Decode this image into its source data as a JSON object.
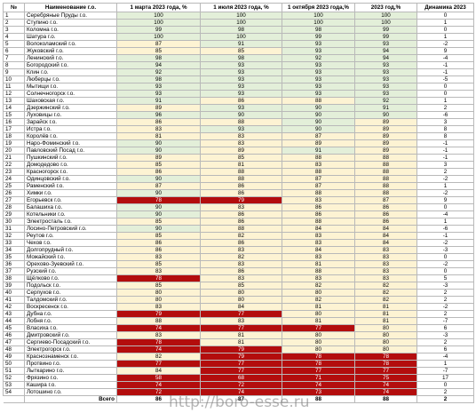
{
  "table": {
    "headers": [
      "№",
      "Наименование г.о.",
      "1 марта 2023 года, %",
      "1 июля 2023 года, %",
      "1 октября 2023 года,%",
      "2023 год,%",
      "Динамика 2023"
    ],
    "rows": [
      [
        1,
        "Серебряные Пруды г.о.",
        100,
        100,
        100,
        100,
        0
      ],
      [
        2,
        "Ступино г.о.",
        100,
        100,
        100,
        100,
        1
      ],
      [
        3,
        "Коломна г.о.",
        99,
        98,
        98,
        99,
        0
      ],
      [
        4,
        "Шатура г.о.",
        100,
        100,
        99,
        99,
        1
      ],
      [
        5,
        "Волоколамский г.о.",
        87,
        91,
        93,
        93,
        -2
      ],
      [
        6,
        "Жуковский г.о.",
        85,
        85,
        93,
        94,
        9
      ],
      [
        7,
        "Ленинский г.о.",
        98,
        98,
        92,
        94,
        -4
      ],
      [
        8,
        "Богородский г.о.",
        94,
        93,
        93,
        93,
        -1
      ],
      [
        9,
        "Клин г.о.",
        92,
        93,
        93,
        93,
        -1
      ],
      [
        10,
        "Люберцы г.о.",
        98,
        93,
        93,
        93,
        -5
      ],
      [
        11,
        "Мытищи г.о.",
        93,
        93,
        93,
        93,
        0
      ],
      [
        12,
        "Солнечногорск г.о.",
        93,
        93,
        93,
        93,
        0
      ],
      [
        13,
        "Шаховская г.о.",
        91,
        86,
        88,
        92,
        1
      ],
      [
        14,
        "Дзержинский г.о.",
        89,
        93,
        90,
        91,
        2
      ],
      [
        15,
        "Луховицы г.о.",
        96,
        90,
        90,
        90,
        -6
      ],
      [
        16,
        "Зарайск г.о.",
        86,
        88,
        90,
        89,
        3
      ],
      [
        17,
        "Истра г.о.",
        83,
        93,
        90,
        89,
        8
      ],
      [
        18,
        "Королёв г.о.",
        81,
        83,
        87,
        89,
        8
      ],
      [
        19,
        "Наро-Фоминский г.о.",
        90,
        83,
        89,
        89,
        -1
      ],
      [
        20,
        "Павловский Посад г.о.",
        90,
        89,
        91,
        89,
        -1
      ],
      [
        21,
        "Пушкинский г.о.",
        89,
        85,
        88,
        88,
        -1
      ],
      [
        22,
        "Домодедово г.о.",
        85,
        81,
        83,
        88,
        3
      ],
      [
        23,
        "Красногорск г.о.",
        86,
        88,
        88,
        88,
        2
      ],
      [
        24,
        "Одинцовский г.о.",
        90,
        88,
        87,
        88,
        -2
      ],
      [
        25,
        "Раменский г.о.",
        87,
        86,
        87,
        88,
        1
      ],
      [
        26,
        "Химки г.о.",
        90,
        86,
        88,
        88,
        -2
      ],
      [
        27,
        "Егорьевск г.о.",
        78,
        79,
        83,
        87,
        9
      ],
      [
        28,
        "Балашиха г.о.",
        90,
        83,
        86,
        86,
        0
      ],
      [
        29,
        "Котельники г.о.",
        90,
        86,
        86,
        86,
        -4
      ],
      [
        30,
        "Электросталь г.о.",
        85,
        86,
        88,
        86,
        1
      ],
      [
        31,
        "Лосино-Петровский г.о.",
        90,
        88,
        84,
        84,
        -6
      ],
      [
        32,
        "Реутов г.о.",
        85,
        82,
        83,
        84,
        -1
      ],
      [
        33,
        "Чехов г.о.",
        86,
        86,
        83,
        84,
        -2
      ],
      [
        34,
        "Долгопрудный г.о.",
        86,
        83,
        84,
        83,
        -3
      ],
      [
        35,
        "Можайский г.о.",
        83,
        82,
        83,
        83,
        0
      ],
      [
        36,
        "Орехово-Зуевский г.о.",
        85,
        83,
        81,
        83,
        -2
      ],
      [
        37,
        "Рузский г.о.",
        83,
        86,
        88,
        83,
        0
      ],
      [
        38,
        "Щёлково г.о.",
        78,
        83,
        83,
        83,
        5
      ],
      [
        39,
        "Подольск г.о.",
        85,
        85,
        82,
        82,
        -3
      ],
      [
        40,
        "Серпухов г.о.",
        80,
        80,
        80,
        82,
        2
      ],
      [
        41,
        "Талдомский г.о.",
        80,
        80,
        82,
        82,
        2
      ],
      [
        42,
        "Воскресенск г.о.",
        83,
        84,
        81,
        81,
        -2
      ],
      [
        43,
        "Дубна г.о.",
        79,
        77,
        80,
        81,
        2
      ],
      [
        44,
        "Лобня г.о.",
        88,
        83,
        81,
        81,
        -7
      ],
      [
        45,
        "Власиха г.о.",
        74,
        77,
        77,
        80,
        6
      ],
      [
        46,
        "Дмитровский г.о.",
        83,
        81,
        80,
        80,
        -3
      ],
      [
        47,
        "Сергиево-Посадский г.о.",
        78,
        81,
        80,
        80,
        2
      ],
      [
        48,
        "Электрогорск г.о.",
        74,
        79,
        80,
        80,
        6
      ],
      [
        49,
        "Краснознаменск г.о.",
        82,
        79,
        78,
        78,
        -4
      ],
      [
        50,
        "Протвино г.о.",
        77,
        77,
        78,
        78,
        1
      ],
      [
        51,
        "Лыткарино г.о.",
        84,
        77,
        77,
        77,
        -7
      ],
      [
        52,
        "Фрязино г.о.",
        58,
        68,
        71,
        75,
        17
      ],
      [
        53,
        "Кашира г.о.",
        74,
        72,
        74,
        74,
        0
      ],
      [
        54,
        "Лотошино г.о.",
        72,
        74,
        73,
        74,
        2
      ]
    ],
    "total": {
      "label": "Всего",
      "values": [
        86,
        87,
        88,
        88,
        2
      ]
    }
  },
  "watermark": "http://boro-esse.ru"
}
